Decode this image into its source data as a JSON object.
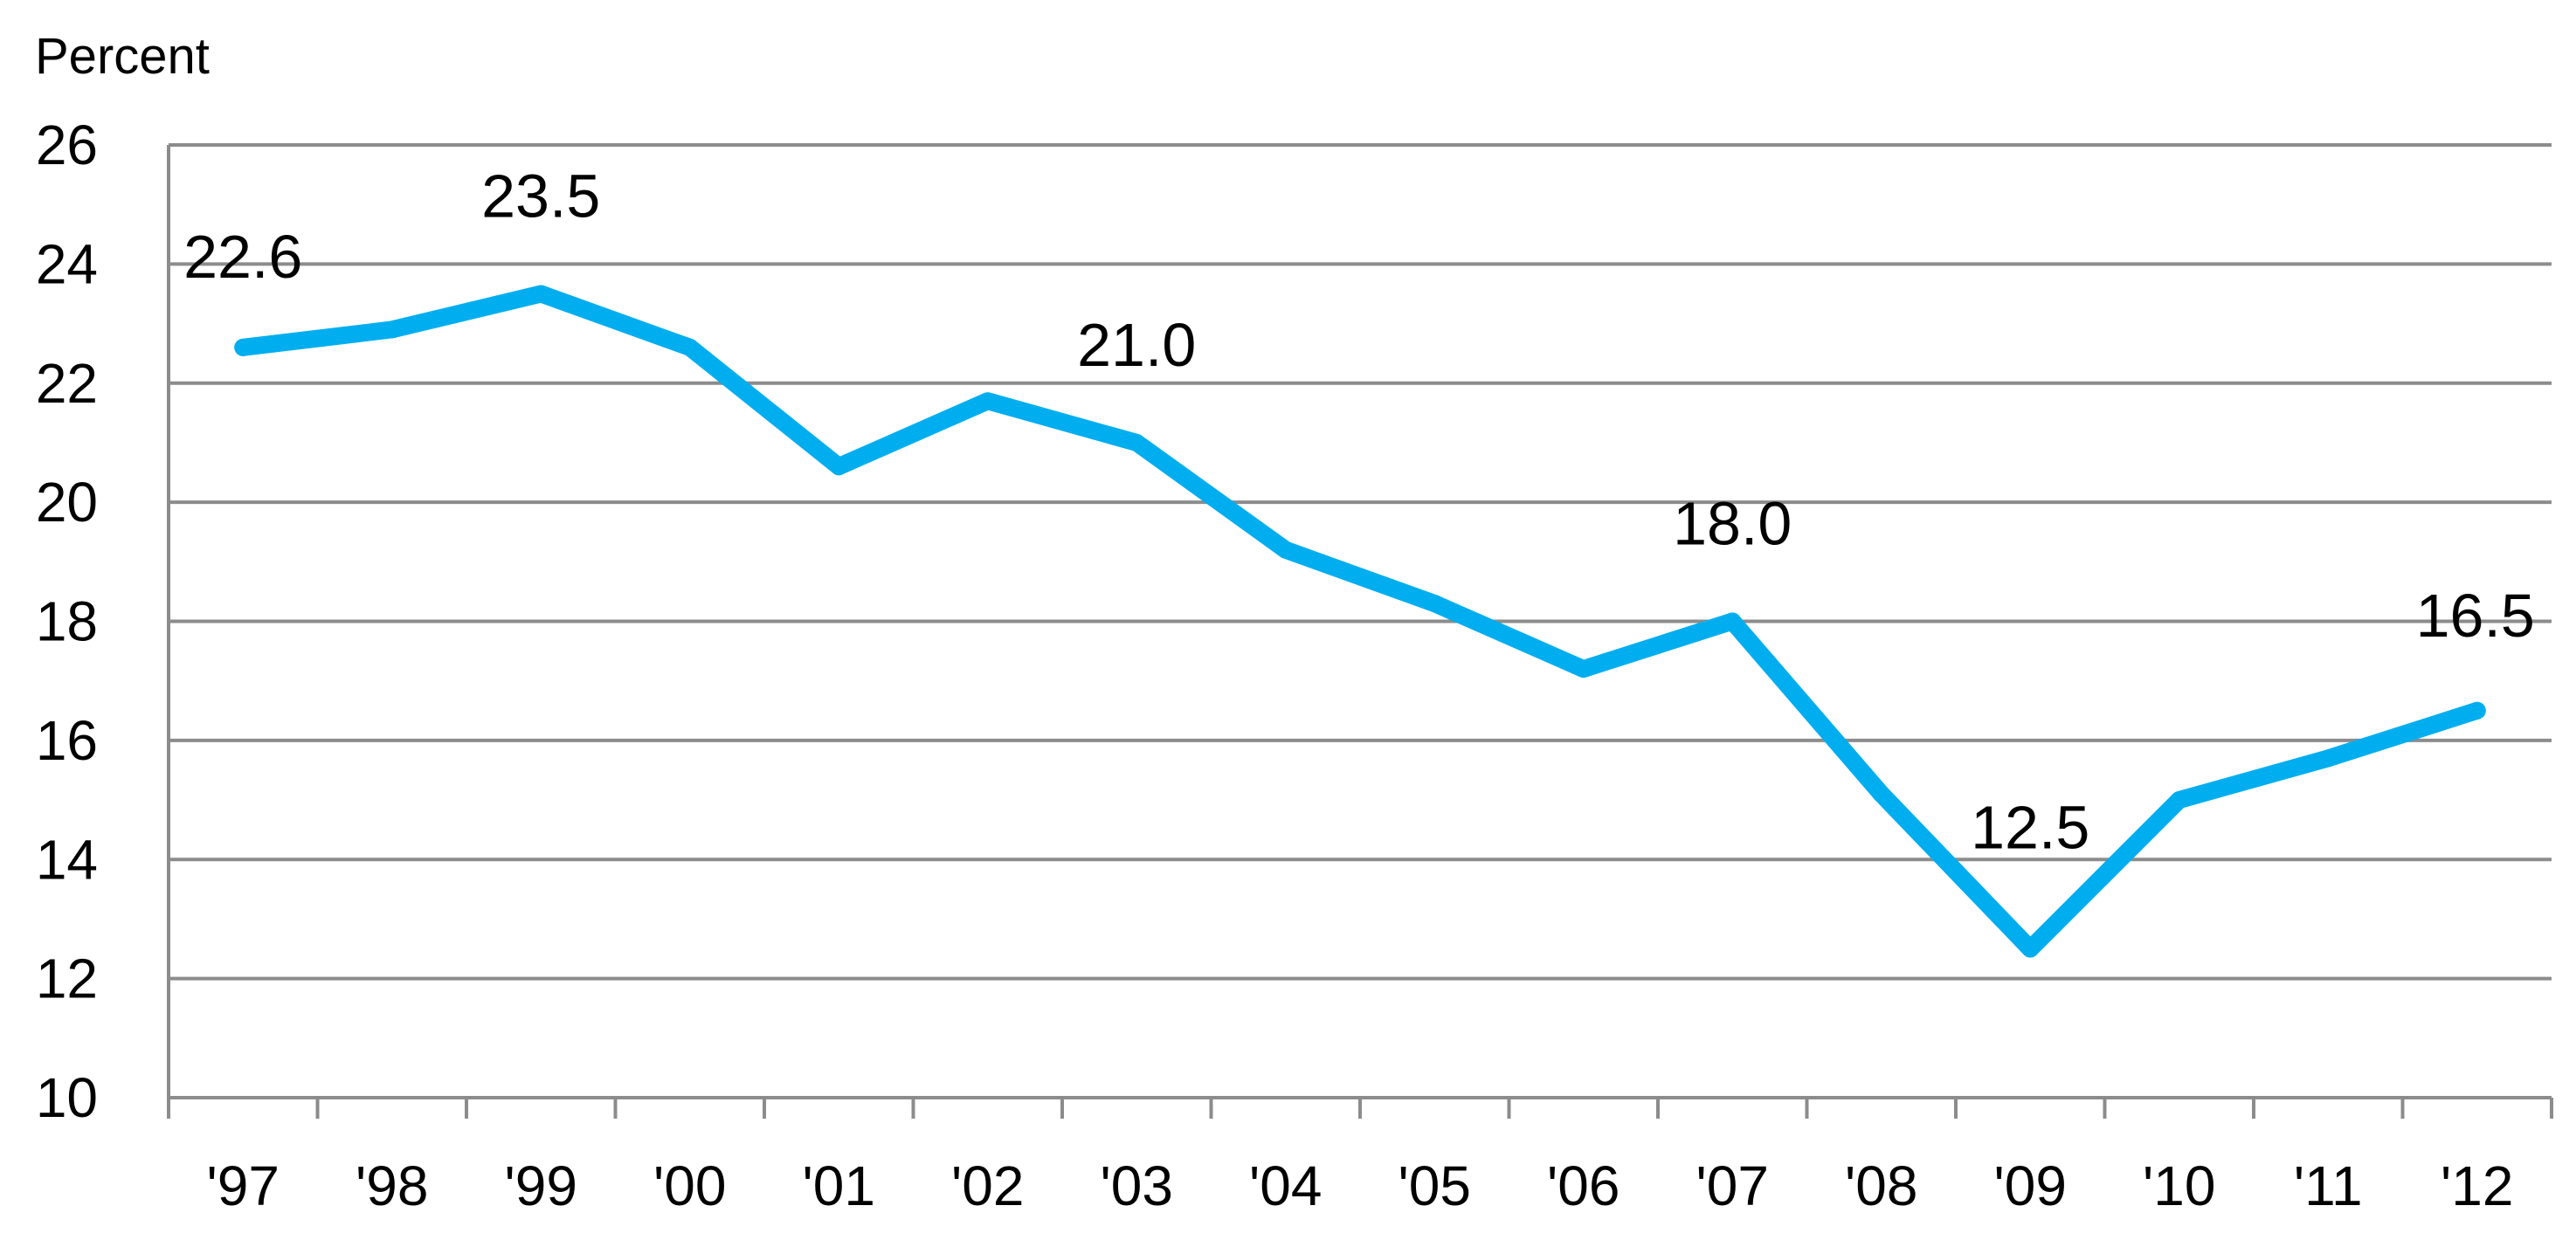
{
  "chart_data": {
    "type": "line",
    "ylabel": "Percent",
    "xlabel": "",
    "title": "",
    "categories": [
      "'97",
      "'98",
      "'99",
      "'00",
      "'01",
      "'02",
      "'03",
      "'04",
      "'05",
      "'06",
      "'07",
      "'08",
      "'09",
      "'10",
      "'11",
      "'12"
    ],
    "series": [
      {
        "values": [
          22.6,
          22.9,
          23.5,
          22.6,
          20.6,
          21.7,
          21.0,
          19.2,
          18.3,
          17.2,
          18.0,
          15.1,
          12.5,
          15.0,
          15.7,
          16.5
        ],
        "color": "#00AEEF"
      }
    ],
    "data_labels": [
      {
        "index": 0,
        "text": "22.6"
      },
      {
        "index": 2,
        "text": "23.5"
      },
      {
        "index": 6,
        "text": "21.0"
      },
      {
        "index": 10,
        "text": "18.0"
      },
      {
        "index": 12,
        "text": "12.5"
      },
      {
        "index": 15,
        "text": "16.5"
      }
    ],
    "yticks": [
      "10",
      "12",
      "14",
      "16",
      "18",
      "20",
      "22",
      "24",
      "26"
    ],
    "ylim": [
      10,
      26
    ],
    "grid": true,
    "legend": "none",
    "colors": {
      "line": "#00AEEF",
      "grid": "#8C8C8C",
      "axis": "#8C8C8C",
      "text": "#000000"
    }
  }
}
